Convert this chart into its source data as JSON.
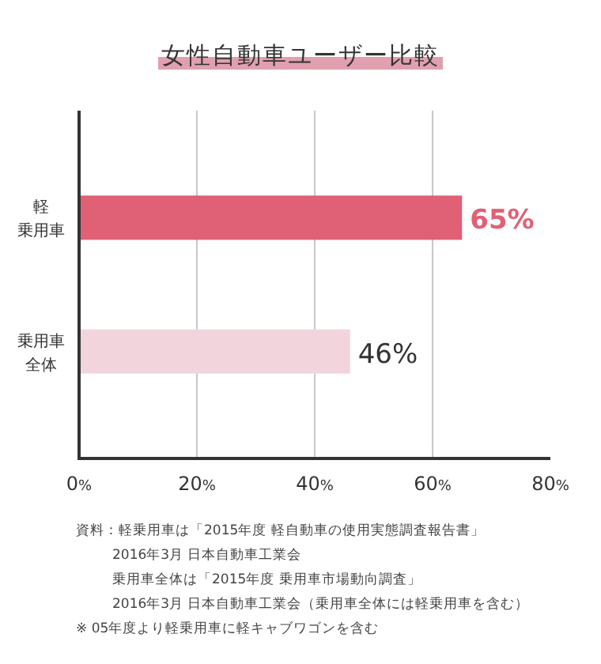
{
  "chart_data": {
    "type": "bar",
    "orientation": "horizontal",
    "title": "女性自動車ユーザー比較",
    "categories": [
      "軽乗用車",
      "乗用車全体"
    ],
    "values": [
      65,
      46
    ],
    "colors": [
      "#e06076",
      "#f2d5dc"
    ],
    "value_labels": [
      "65%",
      "46%"
    ],
    "xlim": [
      0,
      80
    ],
    "xticks": [
      {
        "value": 0,
        "label": "0%"
      },
      {
        "value": 20,
        "label": "20%"
      },
      {
        "value": 40,
        "label": "40%"
      },
      {
        "value": 60,
        "label": "60%"
      },
      {
        "value": 80,
        "label": "80%"
      }
    ],
    "grid": "x",
    "annotations": [
      "資料：軽乗用車は「2015年度 軽自動車の使用実態調査報告書」",
      "2016年3月 日本自動車工業会",
      "乗用車全体は「2015年度 乗用車市場動向調査」",
      "2016年3月 日本自動車工業会（乗用車全体には軽乗用車を含む）",
      "※ 05年度より軽乗用車に軽キャブワゴンを含む"
    ]
  }
}
